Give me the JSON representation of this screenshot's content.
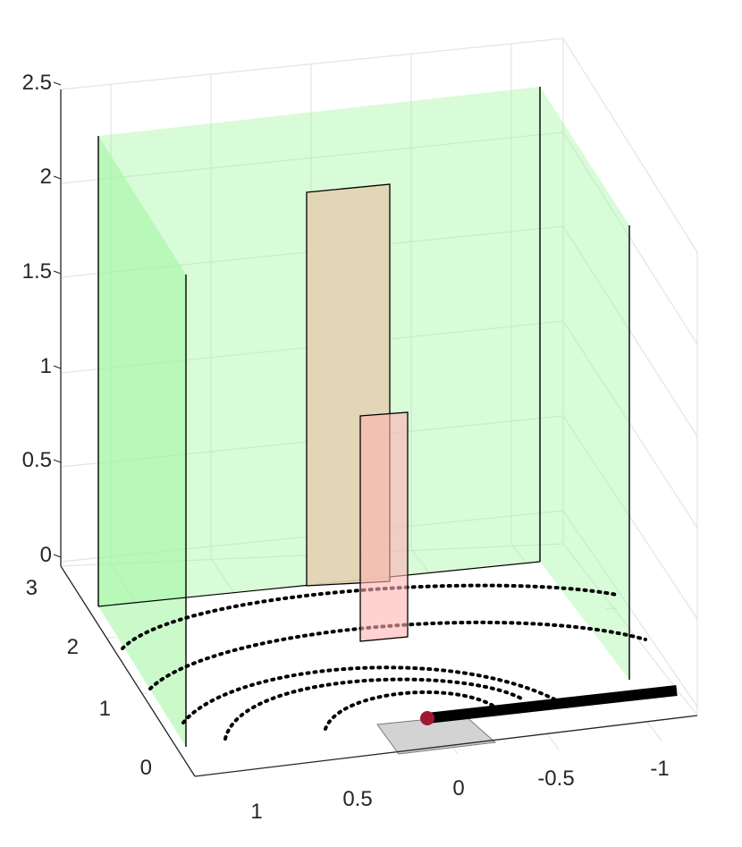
{
  "chart_data": {
    "type": "3d-scene",
    "title": "",
    "xlabel": "",
    "ylabel": "",
    "zlabel": "",
    "grid": true,
    "view": "perspective",
    "axes": {
      "x": {
        "range": [
          -1,
          1
        ],
        "reversed": true,
        "ticks": [
          1,
          0.5,
          0,
          -0.5,
          -1
        ],
        "tick_labels": [
          "1",
          "0.5",
          "0",
          "-0.5",
          "-1"
        ]
      },
      "y": {
        "range": [
          0,
          3
        ],
        "ticks": [
          0,
          1,
          2,
          3
        ],
        "tick_labels": [
          "0",
          "1",
          "2",
          "3"
        ]
      },
      "z": {
        "range": [
          0,
          2.5
        ],
        "ticks": [
          0,
          0.5,
          1,
          1.5,
          2,
          2.5
        ],
        "tick_labels": [
          "0",
          "0.5",
          "1",
          "1.5",
          "2",
          "2.5"
        ]
      }
    },
    "objects": [
      {
        "kind": "wall",
        "name": "left wall",
        "color": "#9ef59e",
        "alpha": 0.4
      },
      {
        "kind": "wall",
        "name": "back wall",
        "color": "#9ef59e",
        "alpha": 0.4
      },
      {
        "kind": "wall",
        "name": "right wall",
        "color": "#9ef59e",
        "alpha": 0.4
      },
      {
        "kind": "panel",
        "name": "tall panel",
        "color": "#e3d2b4",
        "z_top": 2
      },
      {
        "kind": "panel",
        "name": "short panel",
        "color": "#ffb3b3",
        "z_top": 0.6
      },
      {
        "kind": "base",
        "name": "base patch",
        "color": "#d3d3d3"
      },
      {
        "kind": "rod",
        "name": "rod",
        "color": "#000000"
      },
      {
        "kind": "marker",
        "name": "origin marker",
        "color": "#a01830"
      },
      {
        "kind": "arc",
        "name": "dotted arcs",
        "count": 4,
        "color": "#000000"
      }
    ]
  }
}
